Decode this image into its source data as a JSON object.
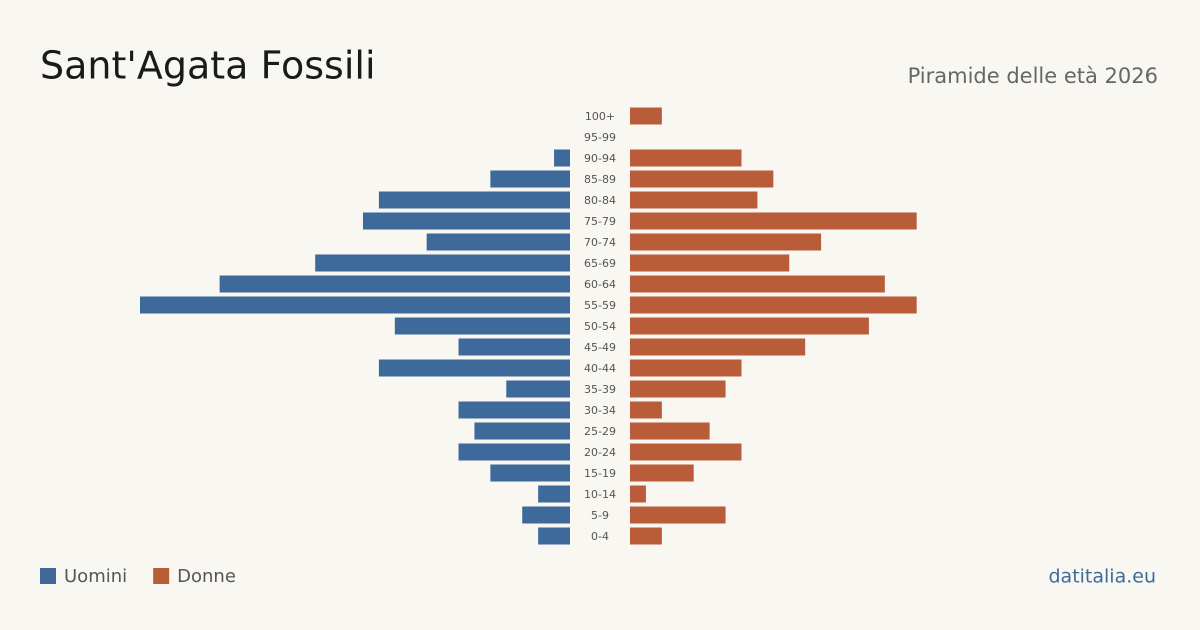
{
  "chart_data": {
    "type": "pyramid",
    "title": "Sant'Agata Fossili",
    "subtitle": "Piramide delle età 2026",
    "source": "datitalia.eu",
    "categories": [
      "100+",
      "95-99",
      "90-94",
      "85-89",
      "80-84",
      "75-79",
      "70-74",
      "65-69",
      "60-64",
      "55-59",
      "50-54",
      "45-49",
      "40-44",
      "35-39",
      "30-34",
      "25-29",
      "20-24",
      "15-19",
      "10-14",
      "5-9",
      "0-4"
    ],
    "series": [
      {
        "name": "Uomini",
        "color": "#3d6a9a",
        "values": [
          0,
          0,
          1,
          5,
          12,
          13,
          9,
          16,
          22,
          27,
          11,
          7,
          12,
          4,
          7,
          6,
          7,
          5,
          2,
          3,
          2
        ]
      },
      {
        "name": "Donne",
        "color": "#b85c3a",
        "values": [
          2,
          0,
          7,
          9,
          8,
          18,
          12,
          10,
          16,
          18,
          15,
          11,
          7,
          6,
          2,
          5,
          7,
          4,
          1,
          6,
          2
        ]
      }
    ]
  }
}
